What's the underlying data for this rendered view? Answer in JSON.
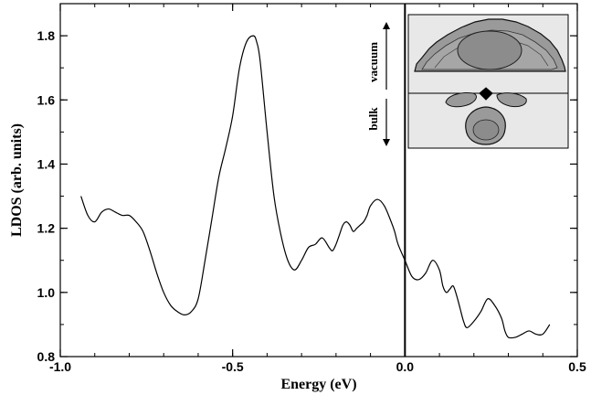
{
  "chart_data": {
    "type": "line",
    "xlabel": "Energy (eV)",
    "ylabel": "LDOS (arb. units)",
    "xlim": [
      -1.0,
      0.5
    ],
    "ylim": [
      0.8,
      1.9
    ],
    "xticks": [
      -1.0,
      -0.5,
      0.0,
      0.5
    ],
    "xtick_labels": [
      "-1.0",
      "-0.5",
      "0.0",
      "0.5"
    ],
    "yticks": [
      0.8,
      1.0,
      1.2,
      1.4,
      1.6,
      1.8
    ],
    "ytick_labels": [
      "0.8",
      "1.0",
      "1.2",
      "1.4",
      "1.6",
      "1.8"
    ],
    "vertical_line_x": 0.0,
    "grid": false,
    "series": [
      {
        "x": [
          -0.94,
          -0.92,
          -0.9,
          -0.88,
          -0.86,
          -0.84,
          -0.82,
          -0.8,
          -0.78,
          -0.76,
          -0.74,
          -0.72,
          -0.7,
          -0.68,
          -0.66,
          -0.64,
          -0.62,
          -0.6,
          -0.58,
          -0.56,
          -0.54,
          -0.52,
          -0.5,
          -0.48,
          -0.46,
          -0.44,
          -0.43,
          -0.42,
          -0.4,
          -0.38,
          -0.36,
          -0.34,
          -0.32,
          -0.3,
          -0.28,
          -0.26,
          -0.24,
          -0.22,
          -0.21,
          -0.2,
          -0.19,
          -0.18,
          -0.17,
          -0.16,
          -0.15,
          -0.14,
          -0.13,
          -0.12,
          -0.11,
          -0.1,
          -0.08,
          -0.06,
          -0.04,
          -0.03,
          -0.02,
          0.0,
          0.02,
          0.04,
          0.06,
          0.08,
          0.1,
          0.11,
          0.12,
          0.13,
          0.14,
          0.15,
          0.16,
          0.17,
          0.18,
          0.2,
          0.22,
          0.24,
          0.26,
          0.28,
          0.29,
          0.3,
          0.32,
          0.34,
          0.36,
          0.38,
          0.4,
          0.42
        ],
        "y": [
          1.3,
          1.24,
          1.22,
          1.25,
          1.26,
          1.25,
          1.24,
          1.24,
          1.22,
          1.19,
          1.13,
          1.06,
          1.0,
          0.96,
          0.94,
          0.93,
          0.94,
          0.98,
          1.1,
          1.23,
          1.36,
          1.45,
          1.55,
          1.7,
          1.78,
          1.8,
          1.78,
          1.72,
          1.5,
          1.3,
          1.18,
          1.1,
          1.07,
          1.1,
          1.14,
          1.15,
          1.17,
          1.14,
          1.13,
          1.15,
          1.18,
          1.21,
          1.22,
          1.21,
          1.19,
          1.2,
          1.21,
          1.22,
          1.24,
          1.27,
          1.29,
          1.27,
          1.22,
          1.19,
          1.15,
          1.1,
          1.05,
          1.04,
          1.06,
          1.1,
          1.07,
          1.02,
          1.0,
          1.01,
          1.02,
          0.99,
          0.95,
          0.91,
          0.89,
          0.91,
          0.94,
          0.98,
          0.96,
          0.92,
          0.88,
          0.86,
          0.86,
          0.87,
          0.88,
          0.87,
          0.87,
          0.9
        ]
      }
    ],
    "inset": {
      "labels": {
        "vacuum": "vacuum",
        "bulk": "bulk"
      },
      "position": "top-right"
    }
  }
}
